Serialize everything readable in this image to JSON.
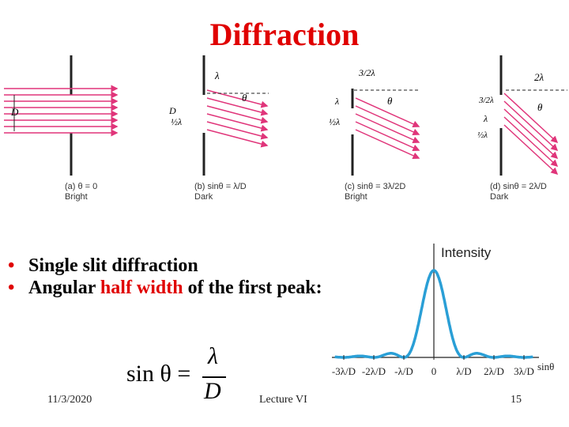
{
  "slide": {
    "title": "Diffraction",
    "bullets": [
      {
        "pre": "Single slit diffraction",
        "hl": "",
        "post": ""
      },
      {
        "pre": "Angular ",
        "hl": "half width",
        "post": " of the first peak:"
      }
    ],
    "formula": {
      "lhs": "sin θ =",
      "numerator": "λ",
      "denominator": "D"
    },
    "date": "11/3/2020",
    "lecture": "Lecture VI",
    "page_number": "15"
  },
  "figure": {
    "panels": [
      {
        "label": "(a) θ = 0",
        "state": "Bright"
      },
      {
        "label": "(b) sinθ = λ/D",
        "state": "Dark"
      },
      {
        "label": "(c) sinθ = 3λ/2D",
        "state": "Bright"
      },
      {
        "label": "(d) sinθ = 2λ/D",
        "state": "Dark"
      }
    ],
    "annotations": {
      "D": "D",
      "lambda": "λ",
      "half_lambda": "½λ",
      "three_half_lambda": "3/2λ",
      "two_lambda": "2λ",
      "theta": "θ"
    }
  },
  "chart_data": {
    "type": "line",
    "ylabel": "Intensity",
    "xlabel": "sinθ",
    "x_ticks": [
      "-3λ/D",
      "-2λ/D",
      "-λ/D",
      "0",
      "λ/D",
      "2λ/D",
      "3λ/D"
    ],
    "x_tick_values": [
      -3,
      -2,
      -1,
      0,
      1,
      2,
      3
    ],
    "series": [
      {
        "color": "#2a9fd6",
        "x": [
          -3.3,
          -3.0,
          -2.5,
          -2.0,
          -1.5,
          -1.0,
          -0.5,
          0,
          0.5,
          1.0,
          1.5,
          2.0,
          2.5,
          3.0,
          3.3
        ],
        "y": [
          0.008,
          0,
          0.016,
          0,
          0.047,
          0,
          0.405,
          1.0,
          0.405,
          0,
          0.047,
          0,
          0.016,
          0,
          0.008
        ]
      }
    ],
    "xlim": [
      -3.3,
      3.3
    ],
    "ylim": [
      0,
      1
    ],
    "grid": false
  },
  "colors": {
    "title": "#e00000",
    "highlight": "#e00000",
    "curve": "#2a9fd6",
    "ray": "#e0357a"
  }
}
